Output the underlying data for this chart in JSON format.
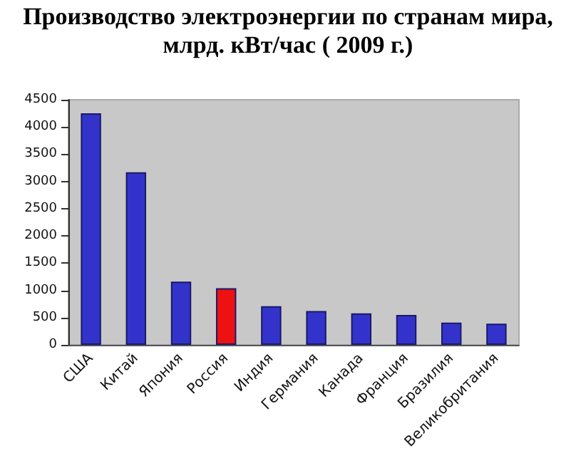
{
  "chart_data": {
    "type": "bar",
    "title": "Производство электроэнергии по странам мира, млрд. кВт/час ( 2009 г.)",
    "categories": [
      "США",
      "Китай",
      "Япония",
      "Россия",
      "Индия",
      "Германия",
      "Канада",
      "Франция",
      "Бразилия",
      "Великобритания"
    ],
    "values": [
      4250,
      3170,
      1160,
      1040,
      710,
      620,
      580,
      550,
      410,
      390
    ],
    "colors": [
      "#3333cc",
      "#3333cc",
      "#3333cc",
      "#ee1111",
      "#3333cc",
      "#3333cc",
      "#3333cc",
      "#3333cc",
      "#3333cc",
      "#3333cc"
    ],
    "ylim": [
      0,
      4500
    ],
    "yticks": [
      0,
      500,
      1000,
      1500,
      2000,
      2500,
      3000,
      3500,
      4000,
      4500
    ],
    "grid": false
  }
}
